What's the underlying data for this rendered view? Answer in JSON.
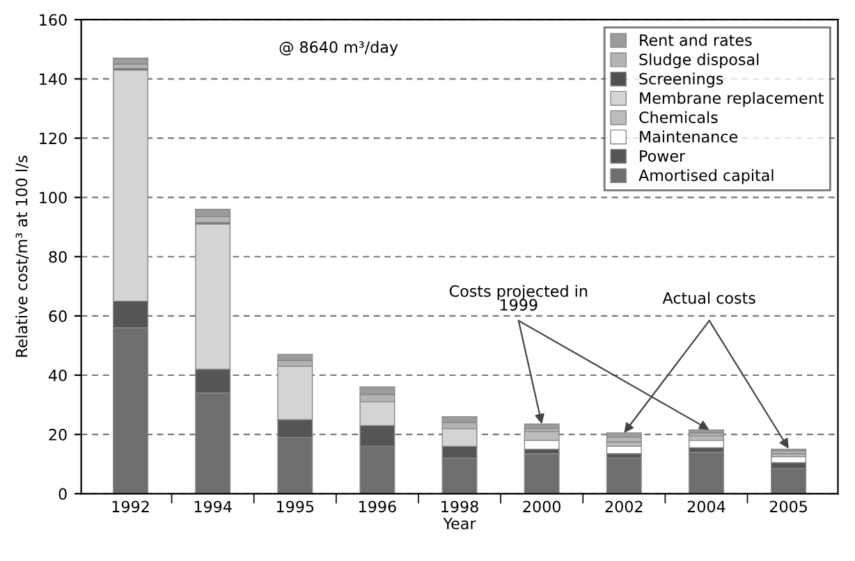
{
  "chart_data": {
    "type": "bar",
    "stacked": true,
    "xlabel": "Year",
    "ylabel": "Relative cost/m³ at 100 l/s",
    "categories": [
      "1992",
      "1994",
      "1995",
      "1996",
      "1998",
      "2000",
      "2002",
      "2004",
      "2005"
    ],
    "series": [
      {
        "name": "Amortised capital",
        "color": "#6e6e6e",
        "values": [
          56,
          34,
          19,
          16,
          12,
          13.5,
          12,
          14,
          8.5
        ]
      },
      {
        "name": "Power",
        "color": "#555555",
        "values": [
          9,
          8,
          6,
          7,
          4,
          1.5,
          1.5,
          1.5,
          2
        ]
      },
      {
        "name": "Maintenance",
        "color": "#ffffff",
        "values": [
          null,
          null,
          null,
          null,
          null,
          3,
          2.5,
          2.5,
          2
        ]
      },
      {
        "name": "Chemicals",
        "color": "#bcbcbc",
        "values": [
          null,
          null,
          null,
          null,
          null,
          3,
          1.5,
          1.5,
          1
        ]
      },
      {
        "name": "Membrane replacement",
        "color": "#d4d4d4",
        "values": [
          78,
          49,
          18,
          8,
          6,
          null,
          null,
          null,
          null
        ]
      },
      {
        "name": "Screenings",
        "color": "#505050",
        "values": [
          0.5,
          0.5,
          null,
          null,
          null,
          null,
          null,
          null,
          null
        ]
      },
      {
        "name": "Sludge disposal",
        "color": "#b4b4b4",
        "values": [
          1.5,
          2,
          2,
          2.5,
          2,
          1,
          1.5,
          1,
          1
        ]
      },
      {
        "name": "Rent and rates",
        "color": "#9c9c9c",
        "values": [
          2,
          2.5,
          2,
          2.5,
          2,
          1.5,
          1.5,
          1,
          0.5
        ]
      }
    ],
    "ylim": [
      0,
      160
    ],
    "yticks": [
      0,
      20,
      40,
      60,
      80,
      100,
      120,
      140,
      160
    ],
    "grid": "y",
    "legend": "top right",
    "annotations": [
      "@ 8640 m³/day",
      {
        "text": "Costs projected in\n1999",
        "x": "2000",
        "y": 23.5
      },
      {
        "text": "Actual costs",
        "x": "2002",
        "y": 20.5
      }
    ]
  }
}
